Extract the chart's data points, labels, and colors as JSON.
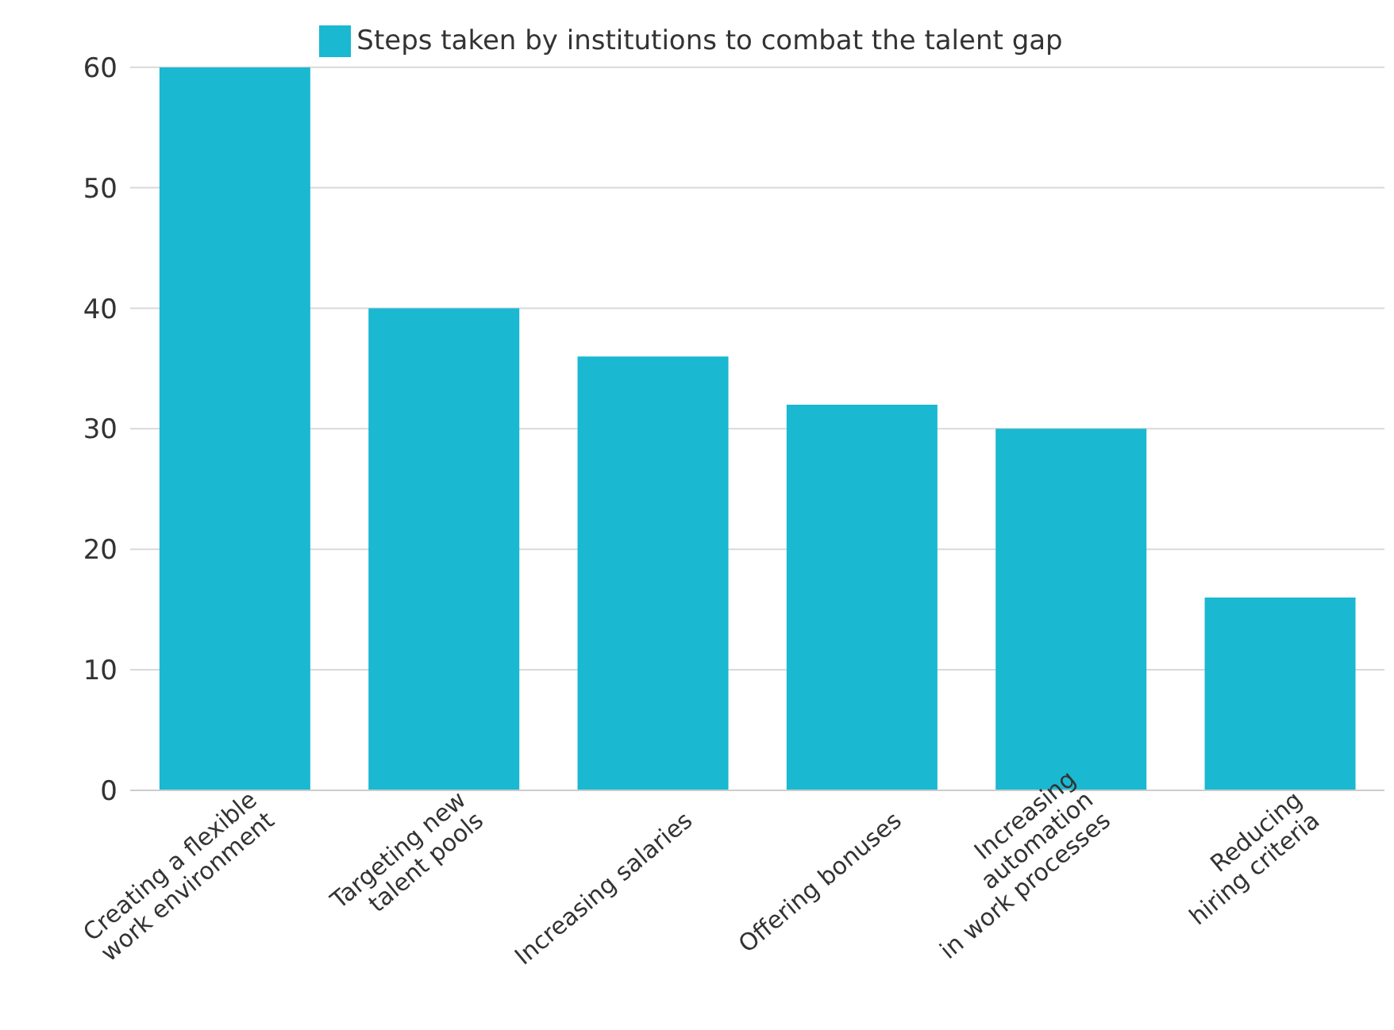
{
  "chart_data": {
    "type": "bar",
    "categories": [
      "Creating a flexible\nwork environment",
      "Targeting new\ntalent pools",
      "Increasing salaries",
      "Offering bonuses",
      "Increasing\nautomation\nin work processes",
      "Reducing\nhiring criteria"
    ],
    "series": [
      {
        "name": "Steps taken by institutions to combat the talent gap",
        "color": "#1ab8d1",
        "values": [
          60,
          40,
          36,
          32,
          30,
          16
        ]
      }
    ],
    "ylim": [
      0,
      60
    ],
    "yticks": [
      0,
      10,
      20,
      30,
      40,
      50,
      60
    ],
    "grid": "y",
    "legend": "top"
  }
}
